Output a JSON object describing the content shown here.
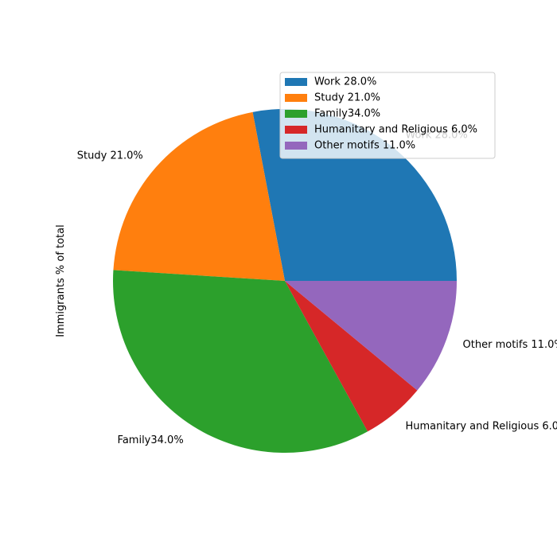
{
  "chart_data": {
    "type": "pie",
    "title": "",
    "ylabel": "Immigrants % of total",
    "slices": [
      {
        "label": "Work 28.0%",
        "value": 28.0,
        "color": "#1f77b4"
      },
      {
        "label": "Study 21.0%",
        "value": 21.0,
        "color": "#ff7f0e"
      },
      {
        "label": "Family34.0%",
        "value": 34.0,
        "color": "#2ca02c"
      },
      {
        "label": "Humanitary and Religious 6.0%",
        "value": 6.0,
        "color": "#d62728"
      },
      {
        "label": "Other motifs 11.0%",
        "value": 11.0,
        "color": "#9467bd"
      }
    ],
    "start_angle_deg": 0,
    "direction": "counterclockwise",
    "legend": {
      "placement": "upper-right",
      "entries": [
        "Work 28.0%",
        "Study 21.0%",
        "Family34.0%",
        "Humanitary and Religious 6.0%",
        "Other motifs 11.0%"
      ]
    }
  }
}
